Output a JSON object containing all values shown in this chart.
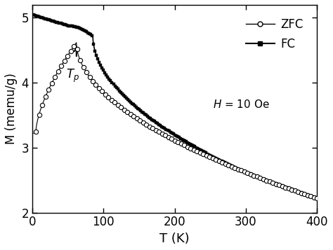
{
  "title": "",
  "xlabel": "T (K)",
  "ylabel": "M (memu/g)",
  "xlim": [
    0,
    400
  ],
  "ylim": [
    2,
    5.2
  ],
  "yticks": [
    2,
    3,
    4,
    5
  ],
  "xticks": [
    0,
    100,
    200,
    300,
    400
  ],
  "legend_labels": [
    "ZFC",
    "FC"
  ],
  "field_label": "H = 10 Oe",
  "background_color": "#ffffff",
  "line_color": "#000000"
}
